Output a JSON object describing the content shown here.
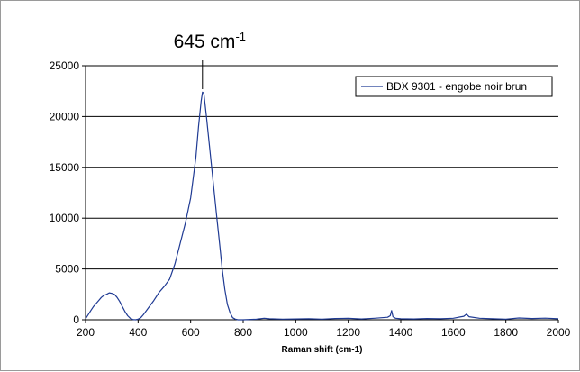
{
  "chart_data": {
    "type": "line",
    "title": "",
    "xlabel": "Raman shift (cm-1)",
    "ylabel": "",
    "xlim": [
      200,
      2000
    ],
    "ylim": [
      0,
      25000
    ],
    "x_ticks": [
      200,
      400,
      600,
      800,
      1000,
      1200,
      1400,
      1600,
      1800,
      2000
    ],
    "y_ticks": [
      0,
      5000,
      10000,
      15000,
      20000,
      25000
    ],
    "grid": "horizontal",
    "legend_position": "top-right",
    "colors": {
      "series": "#1f3a93",
      "grid": "#000000"
    },
    "annotation": {
      "text": "645 cm",
      "superscript": "-1",
      "x": 645
    },
    "series": [
      {
        "name": "BDX 9301 - engobe noir brun",
        "x": [
          200,
          210,
          220,
          230,
          240,
          250,
          260,
          270,
          280,
          290,
          300,
          310,
          320,
          330,
          340,
          350,
          360,
          370,
          380,
          390,
          400,
          410,
          420,
          440,
          460,
          480,
          500,
          520,
          540,
          560,
          580,
          600,
          610,
          620,
          630,
          640,
          645,
          650,
          660,
          670,
          680,
          690,
          700,
          710,
          720,
          730,
          740,
          750,
          760,
          770,
          780,
          800,
          850,
          880,
          900,
          950,
          1000,
          1050,
          1100,
          1150,
          1200,
          1250,
          1300,
          1350,
          1360,
          1365,
          1370,
          1380,
          1400,
          1450,
          1500,
          1550,
          1600,
          1640,
          1650,
          1660,
          1700,
          1750,
          1800,
          1850,
          1900,
          1950,
          2000
        ],
        "y": [
          100,
          500,
          900,
          1300,
          1600,
          1900,
          2200,
          2400,
          2500,
          2650,
          2600,
          2500,
          2200,
          1800,
          1300,
          800,
          400,
          150,
          30,
          0,
          50,
          200,
          500,
          1200,
          1900,
          2700,
          3300,
          4000,
          5500,
          7500,
          9500,
          12000,
          14000,
          16000,
          19000,
          21500,
          22400,
          22300,
          20000,
          17500,
          15000,
          12500,
          10000,
          7500,
          5000,
          3000,
          1500,
          700,
          200,
          60,
          0,
          0,
          50,
          150,
          100,
          60,
          80,
          100,
          60,
          120,
          140,
          80,
          150,
          250,
          400,
          900,
          300,
          150,
          100,
          80,
          120,
          100,
          150,
          350,
          550,
          300,
          150,
          100,
          60,
          180,
          120,
          160,
          100
        ]
      }
    ]
  }
}
